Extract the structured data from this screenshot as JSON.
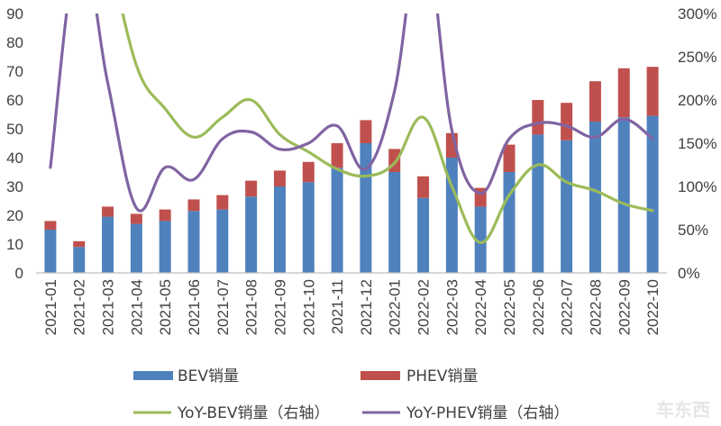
{
  "chart_data": {
    "type": "bar",
    "stacked": true,
    "title": "",
    "categories": [
      "2021-01",
      "2021-02",
      "2021-03",
      "2021-04",
      "2021-05",
      "2021-06",
      "2021-07",
      "2021-08",
      "2021-09",
      "2021-10",
      "2021-11",
      "2021-12",
      "2022-01",
      "2022-02",
      "2022-03",
      "2022-04",
      "2022-05",
      "2022-06",
      "2022-07",
      "2022-08",
      "2022-09",
      "2022-10"
    ],
    "left_axis": {
      "min": 0,
      "max": 90,
      "step": 10,
      "ticks": [
        "0",
        "10",
        "20",
        "30",
        "40",
        "50",
        "60",
        "70",
        "80",
        "90"
      ]
    },
    "right_axis": {
      "min": 0,
      "max": 300,
      "step": 50,
      "ticks": [
        "0%",
        "50%",
        "100%",
        "150%",
        "200%",
        "250%",
        "300%"
      ]
    },
    "series": [
      {
        "name": "BEV销量",
        "type": "bar",
        "axis": "left",
        "color": "#4F81BD",
        "values": [
          15.0,
          9.0,
          19.5,
          17.0,
          18.0,
          21.5,
          22.0,
          26.5,
          30.0,
          31.5,
          36.5,
          45.0,
          35.0,
          26.0,
          40.0,
          23.0,
          35.0,
          48.0,
          46.0,
          52.5,
          54.0,
          54.5
        ]
      },
      {
        "name": "PHEV销量",
        "type": "bar",
        "axis": "left",
        "color": "#C0504D",
        "values": [
          3.0,
          2.0,
          3.5,
          3.5,
          4.0,
          4.0,
          5.0,
          5.5,
          5.5,
          7.0,
          8.5,
          8.0,
          8.0,
          7.5,
          8.5,
          6.5,
          9.5,
          12.0,
          13.0,
          14.0,
          17.0,
          17.0
        ]
      },
      {
        "name": "YoY-BEV销量（右轴）",
        "type": "line",
        "axis": "right",
        "color": "#9BBB59",
        "values": [
          null,
          null,
          380,
          240,
          190,
          157,
          180,
          200,
          160,
          140,
          120,
          112,
          127,
          180,
          100,
          35,
          90,
          125,
          105,
          95,
          80,
          72
        ]
      },
      {
        "name": "YoY-PHEV销量（右轴）",
        "type": "line",
        "axis": "right",
        "color": "#8064A2",
        "values": [
          122,
          380,
          220,
          75,
          122,
          108,
          155,
          163,
          143,
          150,
          170,
          120,
          210,
          400,
          165,
          92,
          155,
          173,
          170,
          157,
          178,
          155
        ]
      }
    ],
    "legend": {
      "position": "bottom",
      "entries": [
        "BEV销量",
        "PHEV销量",
        "YoY-BEV销量（右轴）",
        "YoY-PHEV销量（右轴）"
      ]
    },
    "watermark": "车东西"
  }
}
